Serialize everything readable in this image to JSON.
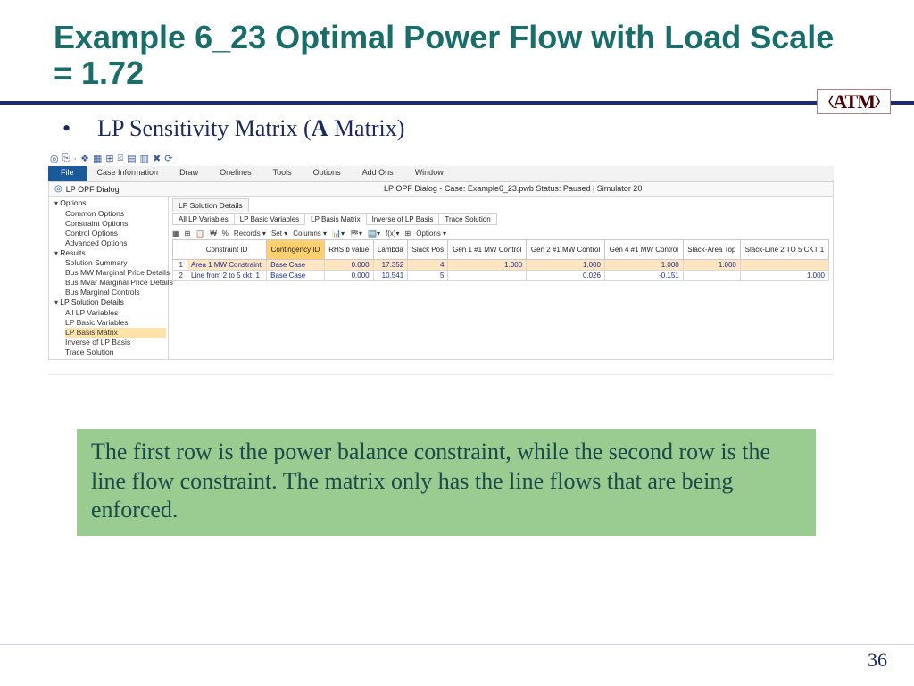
{
  "slide": {
    "title": "Example 6_23 Optimal Power Flow with Load Scale = 1.72",
    "bullet_prefix": "LP Sensitivity Matrix (",
    "bullet_bold": "A",
    "bullet_suffix": " Matrix)",
    "note": "The first row is the power balance constraint, while the second row is the line flow constraint.  The matrix only has the line flows that are being enforced.",
    "page_number": "36",
    "logo_text": "ATM",
    "colors": {
      "title": "#1a6e6a",
      "hr": "#1a2a7a",
      "note_bg": "#9acb90",
      "note_fg": "#1a4a4a",
      "file_tab": "#1a5a9a",
      "row_highlight": "#ffe6c0",
      "header_highlight": "#ffcf70"
    }
  },
  "window": {
    "title": "LP OPF Dialog - Case: Example6_23.pwb  Status: Paused | Simulator 20",
    "dialog_title": "LP OPF Dialog",
    "menubar": [
      "File",
      "Case Information",
      "Draw",
      "Onelines",
      "Tools",
      "Options",
      "Add Ons",
      "Window"
    ],
    "toolbar_glyphs": [
      "◎",
      "⎘",
      "·",
      "❖",
      "▦",
      "⊞",
      "⍃",
      "▤",
      "▥",
      "✖",
      "⟳"
    ]
  },
  "tree": {
    "groups": [
      {
        "label": "Options",
        "items": [
          "Common Options",
          "Constraint Options",
          "Control Options",
          "Advanced Options"
        ]
      },
      {
        "label": "Results",
        "items": [
          "Solution Summary",
          "Bus MW Marginal Price Details",
          "Bus Mvar Marginal Price Details",
          "Bus Marginal Controls"
        ]
      },
      {
        "label": "LP Solution Details",
        "items": [
          "All LP Variables",
          "LP Basic Variables",
          "LP Basis Matrix",
          "Inverse of LP Basis",
          "Trace Solution"
        ],
        "selected_index": 2
      }
    ]
  },
  "panel": {
    "main_tab": "LP Solution Details",
    "subtabs": [
      "All LP Variables",
      "LP Basic Variables",
      "LP Basis Matrix",
      "Inverse of LP Basis",
      "Trace Solution"
    ],
    "subtab_selected": 2,
    "grid_toolbar": [
      "▦",
      "⊞",
      "📋",
      "₩",
      "%",
      "Records ▾",
      "Set ▾",
      "Columns ▾",
      "📊▾",
      "🏁▾",
      "🔤▾",
      "f(x)▾",
      "⊞",
      "Options ▾"
    ],
    "columns": [
      "Constraint ID",
      "Contingency ID",
      "RHS b value",
      "Lambda",
      "Slack Pos",
      "Gen 1 #1 MW Control",
      "Gen 2 #1 MW Control",
      "Gen 4 #1 MW Control",
      "Slack-Area Top",
      "Slack-Line 2 TO 5 CKT 1"
    ],
    "highlight_col_index": 1,
    "rows": [
      {
        "n": "1",
        "cells": [
          "Area 1 MW Constraint",
          "Base Case",
          "0.000",
          "17.352",
          "4",
          "1.000",
          "1.000",
          "1.000",
          "1.000",
          ""
        ]
      },
      {
        "n": "2",
        "cells": [
          "Line from    2 to    5 ckt.  1",
          "Base Case",
          "0.000",
          "10.541",
          "5",
          "",
          "0.026",
          "-0.151",
          "",
          "1.000"
        ]
      }
    ],
    "numeric_col_from": 2
  }
}
